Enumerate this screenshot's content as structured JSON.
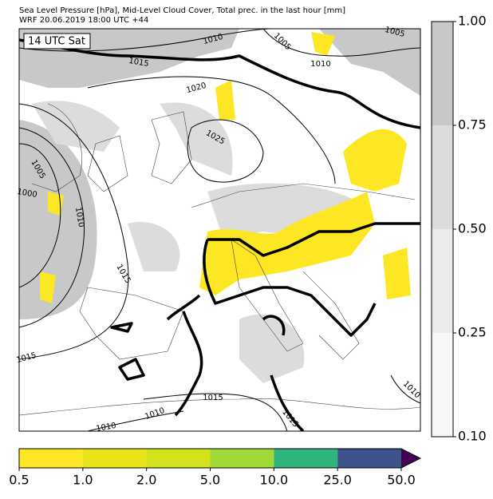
{
  "header": {
    "title": "Sea Level Pressure [hPa], Mid-Level Cloud Cover, Total prec. in the last hour [mm]",
    "subtitle": "WRF 20.06.2019 18:00 UTC +44"
  },
  "map": {
    "time_badge": "14 UTC Sat",
    "contour_labels": [
      "1010",
      "1005",
      "1005",
      "1015",
      "1010",
      "1020",
      "1025",
      "1005",
      "1000",
      "1010",
      "1015",
      "1015",
      "1015",
      "1010",
      "1010",
      "1015",
      "1010"
    ]
  },
  "cloud_colorbar": {
    "ticks": [
      {
        "value": 0.1,
        "label": "0.10"
      },
      {
        "value": 0.25,
        "label": "0.25"
      },
      {
        "value": 0.5,
        "label": "0.50"
      },
      {
        "value": 0.75,
        "label": "0.75"
      },
      {
        "value": 1,
        "label": "1.00"
      }
    ],
    "colors": [
      "#f7f7f7",
      "#ebebeb",
      "#dcdcdc",
      "#c8c8c8"
    ]
  },
  "precip_colorbar": {
    "ticks": [
      {
        "value": 0.5,
        "label": "0.5"
      },
      {
        "value": 1,
        "label": "1.0"
      },
      {
        "value": 2,
        "label": "2.0"
      },
      {
        "value": 5,
        "label": "5.0"
      },
      {
        "value": 10,
        "label": "10.0"
      },
      {
        "value": 25,
        "label": "25.0"
      },
      {
        "value": 50,
        "label": "50.0"
      }
    ],
    "colors": [
      "#fde725",
      "#e8e419",
      "#d2e21b",
      "#a0da39",
      "#2fb47c",
      "#3b528b"
    ],
    "extend_color": "#440154"
  }
}
